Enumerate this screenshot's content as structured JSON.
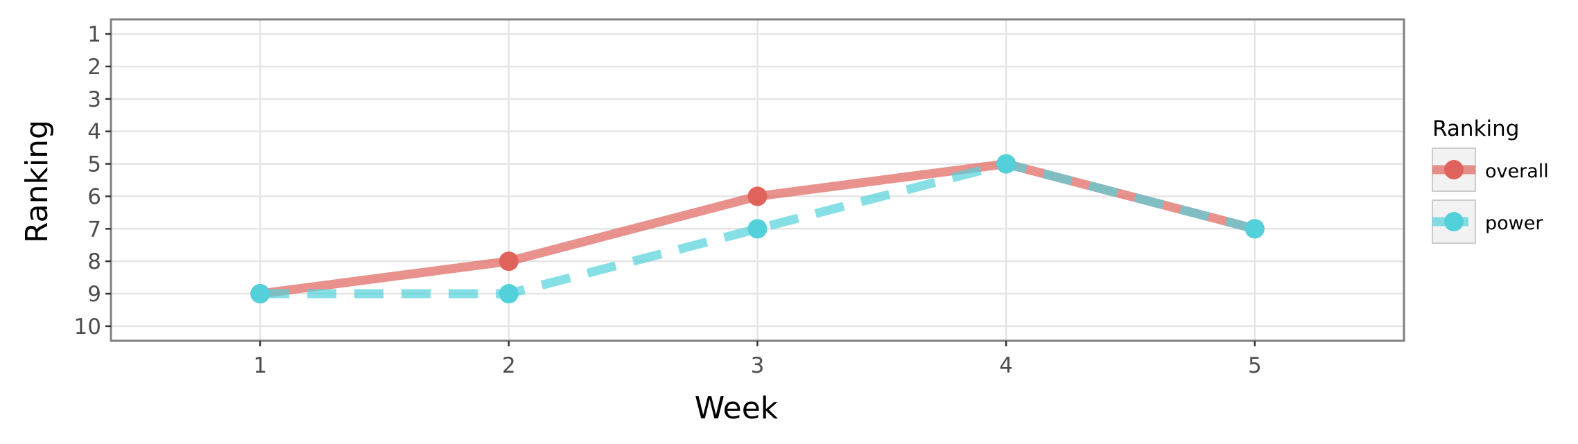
{
  "chart_data": {
    "type": "line",
    "xlabel": "Week",
    "ylabel": "Ranking",
    "x": [
      1,
      2,
      3,
      4,
      5
    ],
    "x_ticks": [
      "1",
      "2",
      "3",
      "4",
      "5"
    ],
    "xlim": [
      0.4,
      5.6
    ],
    "y_ticks": [
      "1",
      "2",
      "3",
      "4",
      "5",
      "6",
      "7",
      "8",
      "9",
      "10"
    ],
    "ylim": [
      10.45,
      0.55
    ],
    "y_reversed": true,
    "grid": true,
    "legend": {
      "title": "Ranking",
      "position": "right"
    },
    "series": [
      {
        "name": "overall",
        "values": [
          9,
          8,
          6,
          5,
          7
        ],
        "color": "#e0635b",
        "line_style": "solid"
      },
      {
        "name": "power",
        "values": [
          9,
          9,
          7,
          5,
          7
        ],
        "color": "#52d1da",
        "line_style": "dashed"
      }
    ],
    "colors": {
      "panel_border": "#7f7f7f",
      "grid": "#e5e5e5",
      "tick_text": "#4d4d4d"
    }
  }
}
